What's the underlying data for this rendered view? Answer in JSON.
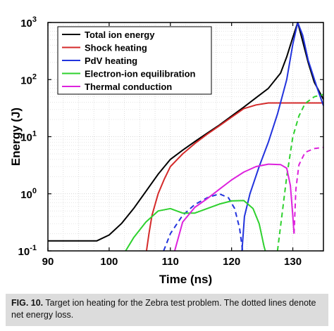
{
  "chart_data": {
    "type": "line",
    "xlabel": "Time (ns)",
    "ylabel": "Energy (J)",
    "xlim": [
      90,
      135
    ],
    "ylim": [
      0.1,
      1000
    ],
    "yscale": "log",
    "grid": true,
    "legend_placement": "top-left",
    "x_ticks": [
      "90",
      "100",
      "110",
      "120",
      "130"
    ],
    "y_ticks": [
      {
        "base": "10",
        "exp": "-1"
      },
      {
        "base": "10",
        "exp": "0"
      },
      {
        "base": "10",
        "exp": "1"
      },
      {
        "base": "10",
        "exp": "2"
      },
      {
        "base": "10",
        "exp": "3"
      }
    ],
    "series": [
      {
        "name": "Total ion energy",
        "color": "#000000",
        "segments": [
          {
            "style": "solid",
            "points": [
              [
                90,
                0.15
              ],
              [
                98,
                0.15
              ],
              [
                100,
                0.19
              ],
              [
                102,
                0.3
              ],
              [
                104,
                0.55
              ],
              [
                106,
                1.1
              ],
              [
                108,
                2.2
              ],
              [
                110,
                4.0
              ],
              [
                112,
                5.8
              ],
              [
                114,
                8.2
              ],
              [
                116,
                11.5
              ],
              [
                118,
                16
              ],
              [
                120,
                23
              ],
              [
                122,
                33
              ],
              [
                124,
                48
              ],
              [
                126,
                70
              ],
              [
                128,
                130
              ],
              [
                129,
                250
              ],
              [
                130,
                550
              ],
              [
                130.8,
                1000
              ],
              [
                131.5,
                520
              ],
              [
                132.5,
                200
              ],
              [
                133.5,
                90
              ],
              [
                135,
                45
              ]
            ]
          }
        ]
      },
      {
        "name": "Shock heating",
        "color": "#d42a2a",
        "segments": [
          {
            "style": "solid",
            "points": [
              [
                106.1,
                0.1
              ],
              [
                106.5,
                0.2
              ],
              [
                107,
                0.42
              ],
              [
                108,
                1.0
              ],
              [
                109,
                1.8
              ],
              [
                110,
                3.0
              ],
              [
                112,
                5.0
              ],
              [
                114,
                7.6
              ],
              [
                116,
                11
              ],
              [
                118,
                15.5
              ],
              [
                120,
                22
              ],
              [
                122,
                31
              ],
              [
                124,
                36
              ],
              [
                126,
                39
              ],
              [
                128,
                39
              ],
              [
                130,
                39
              ],
              [
                132,
                39
              ],
              [
                135,
                39
              ]
            ]
          }
        ]
      },
      {
        "name": "PdV heating",
        "color": "#2233dd",
        "segments": [
          {
            "style": "dashed",
            "points": [
              [
                108.9,
                0.1
              ],
              [
                110,
                0.2
              ],
              [
                112,
                0.42
              ],
              [
                114,
                0.65
              ],
              [
                116,
                0.85
              ],
              [
                118,
                1.0
              ],
              [
                119.5,
                0.85
              ],
              [
                120.5,
                0.55
              ],
              [
                121.3,
                0.25
              ],
              [
                121.8,
                0.1
              ]
            ]
          },
          {
            "style": "solid",
            "points": [
              [
                121.7,
                0.1
              ],
              [
                122.1,
                0.4
              ],
              [
                123,
                1.0
              ],
              [
                124.5,
                3.0
              ],
              [
                126,
                8
              ],
              [
                127.5,
                25
              ],
              [
                129,
                100
              ],
              [
                130,
                420
              ],
              [
                130.8,
                1000
              ],
              [
                131.6,
                600
              ],
              [
                132.5,
                220
              ],
              [
                134,
                70
              ],
              [
                135,
                35
              ]
            ]
          }
        ]
      },
      {
        "name": "Electron-ion equilibration",
        "color": "#2ed12e",
        "segments": [
          {
            "style": "solid",
            "points": [
              [
                102.7,
                0.1
              ],
              [
                104,
                0.17
              ],
              [
                106,
                0.32
              ],
              [
                108,
                0.5
              ],
              [
                110,
                0.55
              ],
              [
                112,
                0.46
              ],
              [
                114,
                0.46
              ],
              [
                116,
                0.55
              ],
              [
                118,
                0.66
              ],
              [
                120,
                0.75
              ],
              [
                122,
                0.76
              ],
              [
                123.5,
                0.55
              ],
              [
                124.5,
                0.3
              ],
              [
                125.3,
                0.12
              ],
              [
                125.5,
                0.1
              ]
            ]
          },
          {
            "style": "dashed",
            "points": [
              [
                127.5,
                0.1
              ],
              [
                128.2,
                0.4
              ],
              [
                129,
                2
              ],
              [
                130,
                10
              ],
              [
                131,
                23
              ],
              [
                132,
                38
              ],
              [
                133.5,
                50
              ],
              [
                135,
                55
              ]
            ]
          }
        ]
      },
      {
        "name": "Thermal conduction",
        "color": "#dd22dd",
        "segments": [
          {
            "style": "solid",
            "points": [
              [
                110.7,
                0.1
              ],
              [
                112,
                0.32
              ],
              [
                114,
                0.58
              ],
              [
                116,
                0.82
              ],
              [
                118,
                1.2
              ],
              [
                120,
                1.75
              ],
              [
                122,
                2.4
              ],
              [
                124,
                3.0
              ],
              [
                126,
                3.3
              ],
              [
                128,
                3.25
              ],
              [
                129,
                2.8
              ],
              [
                129.6,
                1.4
              ],
              [
                130,
                0.4
              ],
              [
                130.2,
                0.2
              ]
            ]
          },
          {
            "style": "dashed",
            "points": [
              [
                130.2,
                0.2
              ],
              [
                130.5,
                1.2
              ],
              [
                131,
                3.2
              ],
              [
                132,
                5.3
              ],
              [
                133.5,
                6.2
              ],
              [
                135,
                6.5
              ]
            ]
          }
        ]
      }
    ]
  },
  "caption": {
    "label": "FIG. 10.",
    "text": "Target ion heating for the Zebra test problem. The dotted lines denote net energy loss."
  }
}
